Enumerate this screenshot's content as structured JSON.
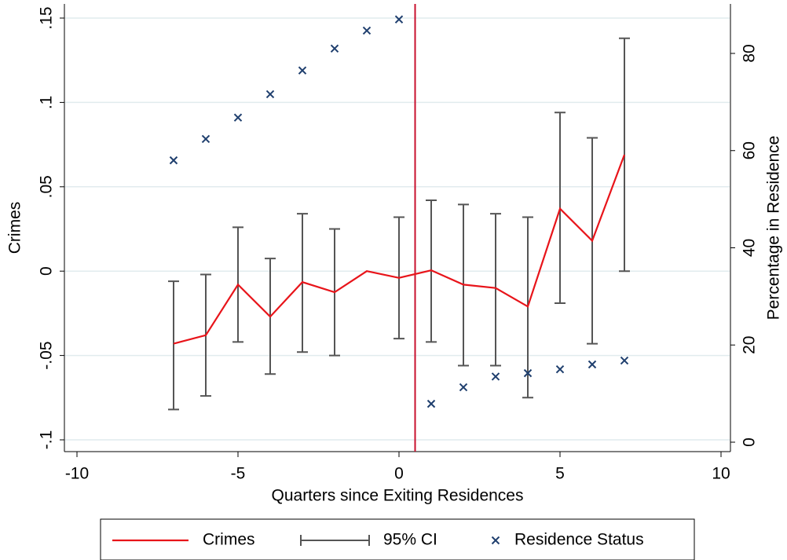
{
  "chart_data": {
    "type": "line",
    "xlabel": "Quarters since Exiting Residences",
    "ylabel": "Crimes",
    "y2label": "Percentage in Residence",
    "x": [
      -7,
      -6,
      -5,
      -4,
      -3,
      -2,
      -1,
      0,
      1,
      2,
      3,
      4,
      5,
      6,
      7
    ],
    "xlim": [
      -10,
      10
    ],
    "xticks": [
      -10,
      -5,
      0,
      5,
      10
    ],
    "ylim": [
      -0.1,
      0.15
    ],
    "yticks": [
      {
        "value": -0.1,
        "label": "-.1"
      },
      {
        "value": -0.05,
        "label": "-.05"
      },
      0,
      {
        "value": 0.05,
        "label": ".05"
      },
      {
        "value": 0.1,
        "label": ".1"
      },
      {
        "value": 0.15,
        "label": ".15"
      }
    ],
    "y2lim": [
      0,
      80
    ],
    "y2ticks": [
      0,
      20,
      40,
      60,
      80
    ],
    "grid": true,
    "xline": 0.5,
    "xline_color": "#c8102e",
    "legend": "bottom",
    "series": [
      {
        "name": "Crimes",
        "kind": "line",
        "color": "#e8141a",
        "values": [
          -0.043,
          -0.038,
          -0.008,
          -0.027,
          -0.0065,
          -0.0125,
          0,
          -0.004,
          0.0005,
          -0.008,
          -0.01,
          -0.021,
          0.037,
          0.018,
          0.069
        ]
      },
      {
        "name": "95% CI",
        "kind": "errorbar",
        "color": "#555555",
        "lower": [
          -0.082,
          -0.074,
          -0.042,
          -0.061,
          -0.048,
          -0.05,
          null,
          -0.04,
          -0.042,
          -0.056,
          -0.056,
          -0.075,
          -0.019,
          -0.043,
          0
        ],
        "upper": [
          -0.006,
          -0.002,
          0.026,
          0.0075,
          0.034,
          0.025,
          null,
          0.032,
          0.042,
          0.0395,
          0.034,
          0.032,
          0.094,
          0.079,
          0.138
        ]
      },
      {
        "name": "Residence Status",
        "kind": "scatter",
        "color": "#1f3f6e",
        "axis": "y2",
        "values": [
          58,
          62.4,
          66.8,
          71.6,
          76.5,
          81,
          84.7,
          87,
          7.9,
          11.3,
          13.5,
          14.2,
          15,
          16,
          16.8
        ]
      }
    ]
  }
}
